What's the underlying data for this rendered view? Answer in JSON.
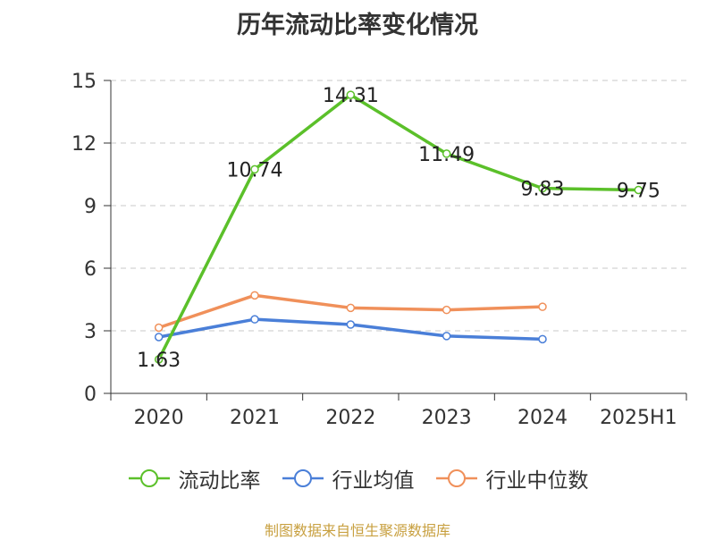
{
  "chart_data": {
    "type": "line",
    "title": "历年流动比率变化情况",
    "categories": [
      "2020",
      "2021",
      "2022",
      "2023",
      "2024",
      "2025H1"
    ],
    "ylim": [
      0,
      15
    ],
    "yticks": [
      0,
      3,
      6,
      9,
      12,
      15
    ],
    "grid": true,
    "legend_position": "bottom",
    "series": [
      {
        "name": "流动比率",
        "color": "#5bc02a",
        "values": [
          1.63,
          10.74,
          14.31,
          11.49,
          9.83,
          9.75
        ],
        "data_labels": [
          "1.63",
          "10.74",
          "14.31",
          "11.49",
          "9.83",
          "9.75"
        ]
      },
      {
        "name": "行业均值",
        "color": "#4a7fd8",
        "values": [
          2.7,
          3.55,
          3.3,
          2.75,
          2.6,
          null
        ]
      },
      {
        "name": "行业中位数",
        "color": "#f0905a",
        "values": [
          3.15,
          4.7,
          4.1,
          4.0,
          4.15,
          null
        ]
      }
    ]
  },
  "source_note": "制图数据来自恒生聚源数据库"
}
